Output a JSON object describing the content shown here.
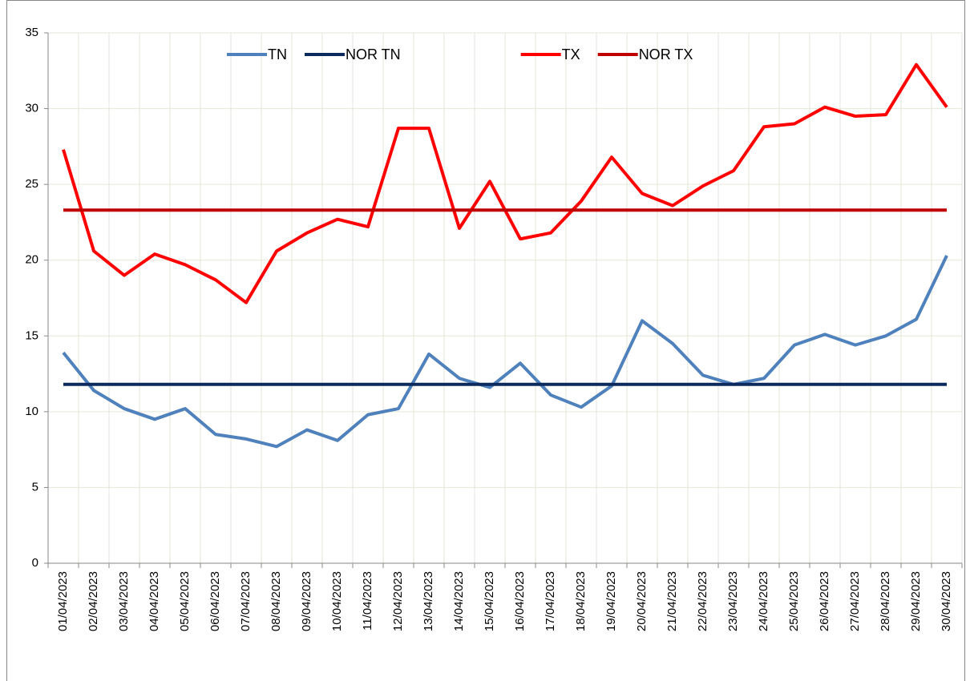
{
  "chart_data": {
    "type": "line",
    "categories": [
      "01/04/2023",
      "02/04/2023",
      "03/04/2023",
      "04/04/2023",
      "05/04/2023",
      "06/04/2023",
      "07/04/2023",
      "08/04/2023",
      "09/04/2023",
      "10/04/2023",
      "11/04/2023",
      "12/04/2023",
      "13/04/2023",
      "14/04/2023",
      "15/04/2023",
      "16/04/2023",
      "17/04/2023",
      "18/04/2023",
      "19/04/2023",
      "20/04/2023",
      "21/04/2023",
      "22/04/2023",
      "23/04/2023",
      "24/04/2023",
      "25/04/2023",
      "26/04/2023",
      "27/04/2023",
      "28/04/2023",
      "29/04/2023",
      "30/04/2023"
    ],
    "series": [
      {
        "name": "TN",
        "color": "#4f81bd",
        "values": [
          13.9,
          11.4,
          10.2,
          9.5,
          10.2,
          8.5,
          8.2,
          7.7,
          8.8,
          8.1,
          9.8,
          10.2,
          13.8,
          12.2,
          11.6,
          13.2,
          11.1,
          10.3,
          11.7,
          16.0,
          14.5,
          12.4,
          11.8,
          12.2,
          14.4,
          15.1,
          14.4,
          15.0,
          16.1,
          20.3
        ]
      },
      {
        "name": "NOR TN",
        "color": "#0d2a5e",
        "values": [
          11.8,
          11.8,
          11.8,
          11.8,
          11.8,
          11.8,
          11.8,
          11.8,
          11.8,
          11.8,
          11.8,
          11.8,
          11.8,
          11.8,
          11.8,
          11.8,
          11.8,
          11.8,
          11.8,
          11.8,
          11.8,
          11.8,
          11.8,
          11.8,
          11.8,
          11.8,
          11.8,
          11.8,
          11.8,
          11.8
        ]
      },
      {
        "name": "TX",
        "color": "#ff0000",
        "values": [
          27.3,
          20.6,
          19.0,
          20.4,
          19.7,
          18.7,
          17.2,
          20.6,
          21.8,
          22.7,
          22.2,
          28.7,
          28.7,
          22.1,
          25.2,
          21.4,
          21.8,
          23.9,
          26.8,
          24.4,
          23.6,
          24.9,
          25.9,
          28.8,
          29.0,
          30.1,
          29.5,
          29.6,
          32.9,
          30.1
        ]
      },
      {
        "name": "NOR TX",
        "color": "#c00000",
        "values": [
          23.3,
          23.3,
          23.3,
          23.3,
          23.3,
          23.3,
          23.3,
          23.3,
          23.3,
          23.3,
          23.3,
          23.3,
          23.3,
          23.3,
          23.3,
          23.3,
          23.3,
          23.3,
          23.3,
          23.3,
          23.3,
          23.3,
          23.3,
          23.3,
          23.3,
          23.3,
          23.3,
          23.3,
          23.3,
          23.3
        ]
      }
    ],
    "ylim": [
      0,
      35
    ],
    "yticks": [
      0,
      5,
      10,
      15,
      20,
      25,
      30,
      35
    ],
    "grid": true,
    "legend": "top"
  }
}
